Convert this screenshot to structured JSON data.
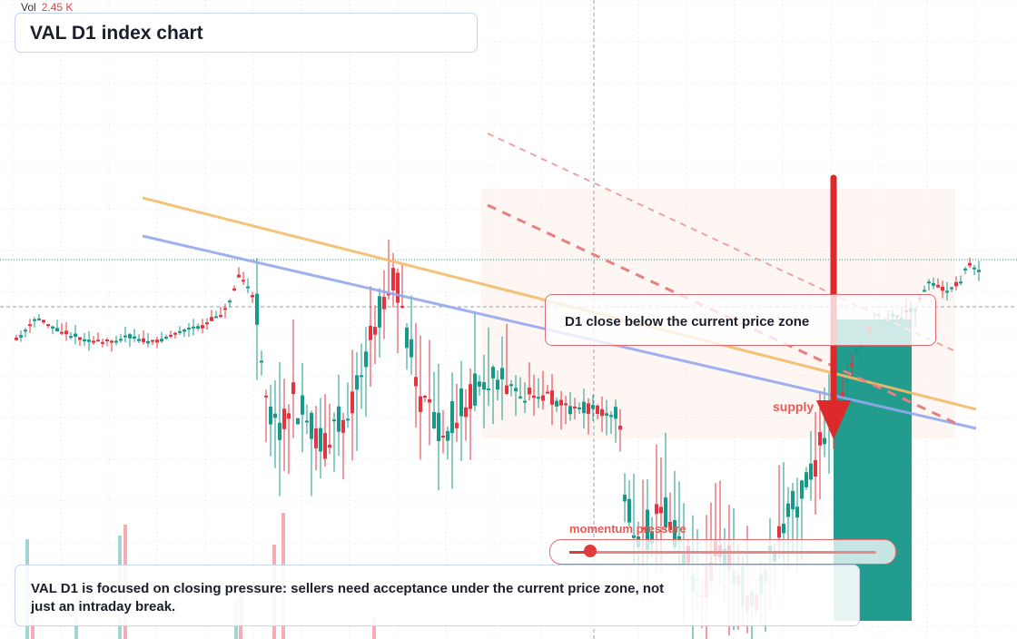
{
  "chart_data": {
    "type": "candlestick",
    "title": "VAL D1 index chart",
    "volume_label": "Vol",
    "volume_value": "2.45 K",
    "annotations": {
      "zone_label": "D1 close below the current price zone",
      "supply_label": "supply",
      "momentum_label": "momentum pressure",
      "momentum_value": 0.06,
      "note": "VAL D1 is focused on closing pressure: sellers need acceptance under the current price zone, not just an intraday break."
    },
    "colors": {
      "up": "#17998a",
      "down": "#e5333f",
      "trend_orange": "#f4bc6a",
      "trend_blue": "#94a9ee",
      "channel": "#e87f7f"
    }
  }
}
